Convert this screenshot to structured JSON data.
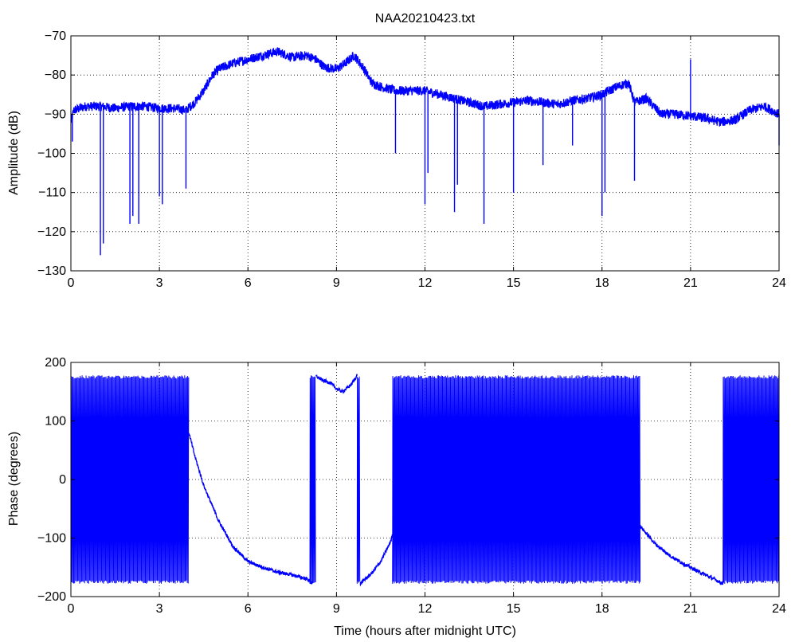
{
  "chart_data": [
    {
      "type": "line",
      "title": "NAA20210423.txt",
      "xlabel": "",
      "ylabel": "Amplitude (dB)",
      "xlim": [
        0,
        24
      ],
      "ylim": [
        -130,
        -70
      ],
      "xticks": [
        0,
        3,
        6,
        9,
        12,
        15,
        18,
        21,
        24
      ],
      "yticks": [
        -130,
        -120,
        -110,
        -100,
        -90,
        -80,
        -70
      ],
      "grid": true,
      "line_color": "#0000ff",
      "series": [
        {
          "x": [
            0,
            0.1,
            0.5,
            1,
            1.5,
            2,
            2.5,
            3,
            3.5,
            3.9,
            4.2,
            4.5,
            4.8,
            5,
            5.5,
            6,
            6.5,
            7,
            7.5,
            8,
            8.3,
            8.6,
            9,
            9.3,
            9.6,
            9.9,
            10.2,
            10.5,
            11,
            11.5,
            12,
            12.5,
            13,
            13.5,
            14,
            14.5,
            15,
            15.5,
            16,
            16.5,
            17,
            17.5,
            18,
            18.5,
            18.9,
            19.1,
            19.5,
            20,
            20.5,
            21,
            21.5,
            22,
            22.5,
            23,
            23.5,
            24
          ],
          "y": [
            -92,
            -89,
            -88,
            -88,
            -88.5,
            -88,
            -88,
            -88.5,
            -88.5,
            -89,
            -87,
            -84,
            -80,
            -78.5,
            -77,
            -76,
            -75,
            -74,
            -75.5,
            -75,
            -76,
            -78,
            -78.5,
            -77,
            -75,
            -78,
            -82,
            -83,
            -84,
            -84,
            -84,
            -85,
            -86,
            -87,
            -88,
            -87.5,
            -87,
            -86.5,
            -87,
            -87.5,
            -86.5,
            -86,
            -85,
            -83,
            -82,
            -87,
            -86,
            -90,
            -90,
            -90.5,
            -91,
            -92,
            -91.5,
            -89,
            -88,
            -90
          ]
        }
      ],
      "spikes": [
        {
          "x": 0.05,
          "y": -97
        },
        {
          "x": 1.0,
          "y": -126
        },
        {
          "x": 1.1,
          "y": -123
        },
        {
          "x": 2.0,
          "y": -118
        },
        {
          "x": 2.1,
          "y": -116
        },
        {
          "x": 2.3,
          "y": -118
        },
        {
          "x": 3.0,
          "y": -111
        },
        {
          "x": 3.1,
          "y": -113
        },
        {
          "x": 3.9,
          "y": -109
        },
        {
          "x": 11.0,
          "y": -100
        },
        {
          "x": 12.0,
          "y": -113
        },
        {
          "x": 12.1,
          "y": -105
        },
        {
          "x": 13.0,
          "y": -115
        },
        {
          "x": 13.1,
          "y": -108
        },
        {
          "x": 14.0,
          "y": -118
        },
        {
          "x": 15.0,
          "y": -110
        },
        {
          "x": 16.0,
          "y": -103
        },
        {
          "x": 17.0,
          "y": -98
        },
        {
          "x": 18.0,
          "y": -116
        },
        {
          "x": 18.1,
          "y": -110
        },
        {
          "x": 19.1,
          "y": -107
        },
        {
          "x": 21.0,
          "y": -76
        },
        {
          "x": 24.0,
          "y": -98
        }
      ]
    },
    {
      "type": "line",
      "title": "",
      "xlabel": "Time (hours after midnight UTC)",
      "ylabel": "Phase (degrees)",
      "xlim": [
        0,
        24
      ],
      "ylim": [
        -200,
        200
      ],
      "xticks": [
        0,
        3,
        6,
        9,
        12,
        15,
        18,
        21,
        24
      ],
      "yticks": [
        -200,
        -100,
        0,
        100,
        200
      ],
      "grid": true,
      "line_color": "#0000ff",
      "series": [
        {
          "x": [
            4.0,
            4.2,
            4.5,
            5.0,
            5.5,
            6.0,
            6.5,
            7.0,
            7.5,
            8.0,
            8.2
          ],
          "y": [
            80,
            40,
            -10,
            -70,
            -115,
            -140,
            -150,
            -158,
            -163,
            -170,
            -178
          ]
        },
        {
          "x": [
            8.3,
            8.5,
            8.8,
            9.0,
            9.2,
            9.5,
            9.7
          ],
          "y": [
            177,
            170,
            165,
            155,
            150,
            162,
            178
          ]
        },
        {
          "x": [
            9.8,
            10.2,
            10.5,
            10.8,
            11.0
          ],
          "y": [
            -178,
            -160,
            -140,
            -110,
            -80
          ]
        },
        {
          "x": [
            19.3,
            19.8,
            20.3,
            20.8,
            21.3,
            21.8,
            22.1
          ],
          "y": [
            -80,
            -110,
            -130,
            -145,
            -158,
            -170,
            -178
          ]
        }
      ],
      "wrapped_bands": [
        {
          "x_start": 0.0,
          "x_end": 4.0,
          "y_min": -178,
          "y_max": 178
        },
        {
          "x_start": 8.1,
          "x_end": 8.3,
          "y_min": -178,
          "y_max": 178
        },
        {
          "x_start": 9.7,
          "x_end": 9.8,
          "y_min": -178,
          "y_max": 178
        },
        {
          "x_start": 10.9,
          "x_end": 19.3,
          "y_min": -178,
          "y_max": 178
        },
        {
          "x_start": 22.1,
          "x_end": 24.0,
          "y_min": -178,
          "y_max": 178
        }
      ]
    }
  ]
}
